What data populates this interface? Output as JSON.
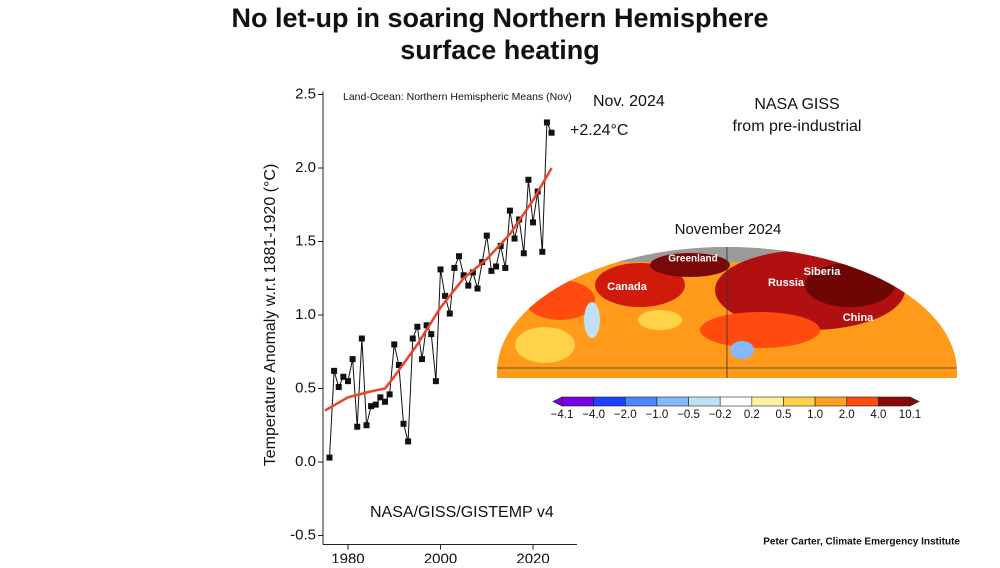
{
  "chart_data": {
    "type": "line",
    "title": [
      "No let-up in soaring Northern Hemisphere",
      "surface heating"
    ],
    "plot_title": "Land-Ocean: Northern Hemispheric Means (Nov)",
    "y_label": "Temperature Anomaly w.r.t 1881-1920 (°C)",
    "source": "NASA/GISS/GISTEMP v4",
    "annotations": [
      "Nov. 2024",
      "+2.24°C",
      "NASA GISS",
      "from pre-industrial"
    ],
    "credit": "Peter Carter, Climate Emergency Institute",
    "xlim": [
      1974.6,
      2029.5
    ],
    "xticks": [
      1980,
      2000,
      2020
    ],
    "ylim": [
      -0.5,
      2.5
    ],
    "yticks": [
      -0.5,
      {
        "value": 0,
        "label": "0.0"
      },
      0.5,
      {
        "value": 1,
        "label": "1.0"
      },
      1.5,
      {
        "value": 2,
        "label": "2.0"
      },
      2.5
    ],
    "series": [
      {
        "color": "#111111",
        "markers": true,
        "x": [
          1976,
          1977,
          1978,
          1979,
          1980,
          1981,
          1982,
          1983,
          1984,
          1985,
          1986,
          1987,
          1988,
          1989,
          1990,
          1991,
          1992,
          1993,
          1994,
          1995,
          1996,
          1997,
          1998,
          1999,
          2000,
          2001,
          2002,
          2003,
          2004,
          2005,
          2006,
          2007,
          2008,
          2009,
          2010,
          2011,
          2012,
          2013,
          2014,
          2015,
          2016,
          2017,
          2018,
          2019,
          2020,
          2021,
          2022,
          2023,
          2024
        ],
        "values": [
          0.03,
          0.62,
          0.51,
          0.58,
          0.55,
          0.7,
          0.24,
          0.84,
          0.25,
          0.38,
          0.39,
          0.44,
          0.41,
          0.46,
          0.8,
          0.66,
          0.26,
          0.14,
          0.84,
          0.92,
          0.7,
          0.93,
          0.87,
          0.55,
          1.31,
          1.13,
          1.01,
          1.32,
          1.4,
          1.27,
          1.2,
          1.29,
          1.18,
          1.36,
          1.54,
          1.3,
          1.33,
          1.47,
          1.32,
          1.71,
          1.52,
          1.65,
          1.42,
          1.92,
          1.63,
          1.84,
          1.43,
          2.31,
          2.24
        ]
      },
      {
        "color": "#e8452a",
        "markers": false,
        "x": [
          1975,
          1980,
          1985,
          1988,
          1990,
          1995,
          2000,
          2005,
          2010,
          2015,
          2020,
          2024
        ],
        "values": [
          0.35,
          0.44,
          0.48,
          0.5,
          0.58,
          0.8,
          1.05,
          1.25,
          1.38,
          1.55,
          1.78,
          2.0
        ]
      }
    ],
    "map": {
      "title": "November 2024",
      "places": [
        "Greenland",
        "Canada",
        "Russia",
        "Siberia",
        "China"
      ],
      "colorbar_labels": [
        "−4.1",
        "−4.0",
        "−2.0",
        "−1.0",
        "−0.5",
        "−0.2",
        "0.2",
        "0.5",
        "1.0",
        "2.0",
        "4.0",
        "10.1"
      ],
      "colorbar_colors": [
        "#7a00e6",
        "#2040ff",
        "#4f85ff",
        "#86b8ff",
        "#bfe0f5",
        "#ffffff",
        "#fff2a0",
        "#ffd24a",
        "#ffa01e",
        "#ff4a10",
        "#8a0a0a"
      ]
    }
  }
}
